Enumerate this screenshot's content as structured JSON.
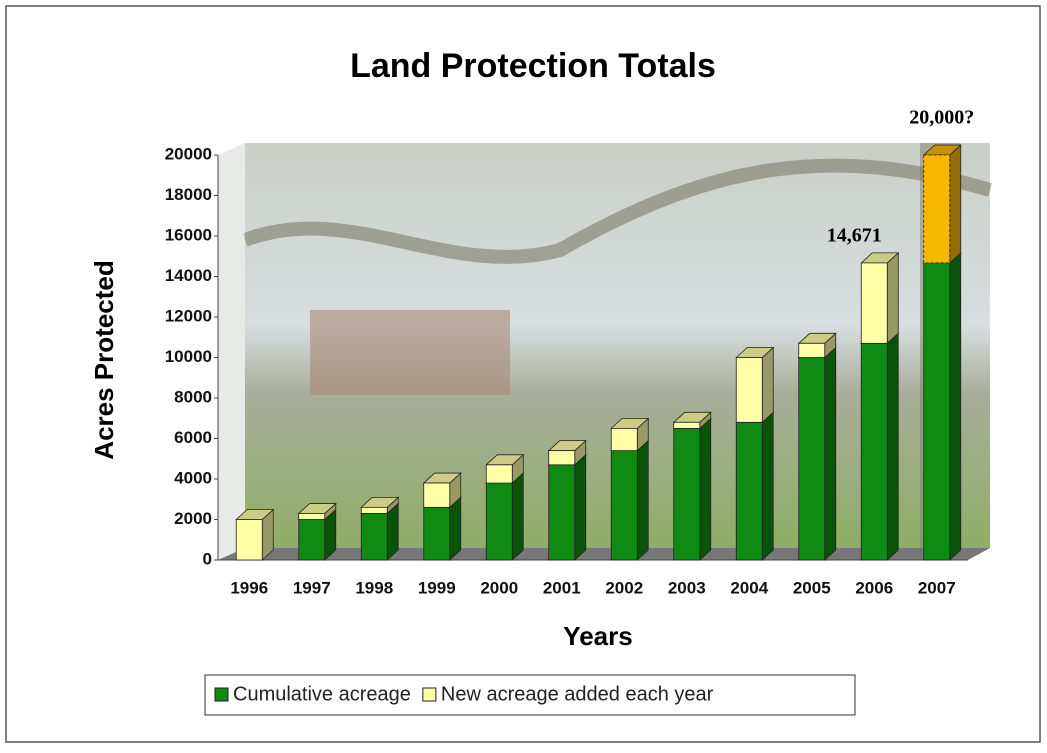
{
  "chart_data": {
    "type": "stacked_bar_3d",
    "title": "Land Protection Totals",
    "y_label": "Acres Protected",
    "x_label": "Years",
    "categories": [
      "1996",
      "1997",
      "1998",
      "1999",
      "2000",
      "2001",
      "2002",
      "2003",
      "2004",
      "2005",
      "2006",
      "2007"
    ],
    "series": [
      {
        "name": "Cumulative acreage",
        "color": "#0f8a12",
        "values": [
          0,
          2000,
          2300,
          2600,
          3800,
          4700,
          5400,
          6500,
          6800,
          10000,
          10700,
          14671
        ]
      },
      {
        "name": "New acreage added each year",
        "color": "#ffffa8",
        "values": [
          2000,
          300,
          300,
          1200,
          900,
          700,
          1100,
          300,
          3200,
          700,
          3971,
          5329
        ],
        "projected_category": "2007",
        "projected_color": "#f7b800"
      }
    ],
    "annotations": [
      {
        "text": "14,671",
        "category": "2006",
        "y": 14671
      },
      {
        "text": "20,000?",
        "category": "2007",
        "y": 20000
      }
    ],
    "ylim": [
      0,
      20000
    ],
    "yticks": [
      0,
      2000,
      4000,
      6000,
      8000,
      10000,
      12000,
      14000,
      16000,
      18000,
      20000
    ],
    "grid": false
  }
}
